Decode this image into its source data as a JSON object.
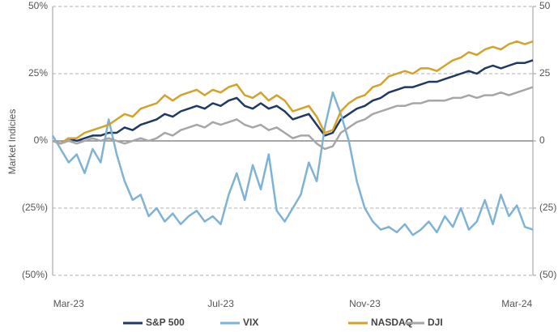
{
  "chart_data": {
    "type": "line",
    "y_label": "Market Indicies",
    "categories": [
      null,
      null,
      "Mar-23",
      null,
      null,
      null,
      null,
      null,
      null,
      null,
      null,
      null,
      null,
      null,
      null,
      null,
      null,
      null,
      null,
      null,
      null,
      "Jul-23",
      null,
      null,
      null,
      null,
      null,
      null,
      null,
      null,
      null,
      null,
      null,
      null,
      null,
      null,
      null,
      null,
      null,
      "Nov-23",
      null,
      null,
      null,
      null,
      null,
      null,
      null,
      null,
      null,
      null,
      null,
      null,
      null,
      null,
      null,
      null,
      null,
      null,
      "Mar-24",
      null,
      null
    ],
    "series": [
      {
        "name": "S&P 500",
        "color": "#1f3864",
        "values": [
          0,
          -1,
          1,
          0,
          1,
          2,
          2,
          3,
          3,
          5,
          4,
          6,
          7,
          8,
          10,
          9,
          11,
          12,
          13,
          12,
          14,
          13,
          15,
          16,
          13,
          12,
          14,
          12,
          13,
          11,
          8,
          9,
          10,
          6,
          2,
          3,
          8,
          10,
          12,
          13,
          15,
          16,
          18,
          19,
          20,
          20,
          21,
          22,
          22,
          23,
          24,
          25,
          26,
          25,
          27,
          28,
          27,
          28,
          29,
          29,
          30
        ]
      },
      {
        "name": "VIX",
        "color": "#7fb3d5",
        "axis": "y2",
        "values": [
          2,
          -3,
          -8,
          -5,
          -12,
          -3,
          -8,
          8,
          -5,
          -15,
          -22,
          -20,
          -28,
          -25,
          -30,
          -27,
          -31,
          -28,
          -26,
          -30,
          -28,
          -31,
          -20,
          -12,
          -22,
          -9,
          -18,
          -5,
          -26,
          -30,
          -25,
          -20,
          -8,
          -15,
          5,
          18,
          10,
          0,
          -15,
          -25,
          -30,
          -33,
          -32,
          -34,
          -31,
          -35,
          -33,
          -30,
          -34,
          -28,
          -32,
          -25,
          -33,
          -30,
          -22,
          -31,
          -20,
          -28,
          -24,
          -32,
          -33
        ]
      },
      {
        "name": "NASDAQ",
        "color": "#d4a12a",
        "values": [
          0,
          -1,
          1,
          1,
          3,
          4,
          5,
          6,
          8,
          10,
          9,
          12,
          13,
          14,
          17,
          15,
          17,
          18,
          19,
          17,
          19,
          18,
          20,
          21,
          17,
          16,
          18,
          15,
          17,
          15,
          11,
          12,
          13,
          9,
          3,
          4,
          11,
          14,
          16,
          17,
          20,
          21,
          24,
          25,
          26,
          25,
          27,
          27,
          26,
          28,
          30,
          31,
          33,
          32,
          34,
          35,
          34,
          36,
          37,
          36,
          37
        ]
      },
      {
        "name": "DJI",
        "color": "#a6a6a6",
        "values": [
          0,
          -1,
          0,
          -1,
          0,
          1,
          0,
          1,
          0,
          -1,
          0,
          1,
          0,
          1,
          3,
          2,
          4,
          5,
          6,
          5,
          7,
          6,
          7,
          8,
          6,
          5,
          6,
          4,
          5,
          3,
          1,
          2,
          2,
          -1,
          -3,
          -2,
          3,
          5,
          7,
          8,
          10,
          11,
          12,
          13,
          13,
          14,
          14,
          15,
          15,
          15,
          16,
          16,
          17,
          16,
          17,
          17,
          18,
          17,
          18,
          19,
          20
        ]
      }
    ],
    "ylim": [
      -50,
      50
    ],
    "yticks": [
      {
        "value": 50,
        "label": "50%"
      },
      {
        "value": 25,
        "label": "25%"
      },
      {
        "value": 0,
        "label": "0%"
      },
      {
        "value": -25,
        "label": "(25%)"
      },
      {
        "value": -50,
        "label": "(50%)"
      }
    ],
    "y2lim": [
      -50,
      50
    ],
    "y2ticks": [
      50,
      25,
      0,
      {
        "value": -25,
        "label": "(25)"
      },
      {
        "value": -50,
        "label": "(50)"
      }
    ],
    "grid": true,
    "legend": "bottom"
  }
}
